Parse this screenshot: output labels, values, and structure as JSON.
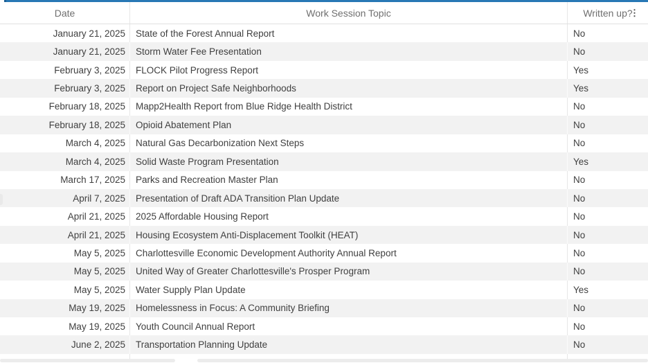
{
  "colors": {
    "accent": "#2878b5",
    "row_stripe": "#f2f2f2",
    "header_text": "#6f6f6f",
    "body_text": "#3f3f3f"
  },
  "table": {
    "columns": [
      {
        "label": "Date"
      },
      {
        "label": "Work Session Topic"
      },
      {
        "label": "Written up?"
      }
    ],
    "column_menu_icon": "⋮",
    "rows": [
      {
        "date": "January 21, 2025",
        "topic": "State of the Forest Annual Report",
        "written": "No"
      },
      {
        "date": "January 21, 2025",
        "topic": "Storm Water Fee Presentation",
        "written": "No"
      },
      {
        "date": "February 3, 2025",
        "topic": "FLOCK Pilot Progress Report",
        "written": "Yes"
      },
      {
        "date": "February 3, 2025",
        "topic": "Report on Project Safe Neighborhoods",
        "written": "Yes"
      },
      {
        "date": "February 18, 2025",
        "topic": "Mapp2Health Report from Blue Ridge Health District",
        "written": "No"
      },
      {
        "date": "February 18, 2025",
        "topic": "Opioid Abatement Plan",
        "written": "No"
      },
      {
        "date": "March 4, 2025",
        "topic": "Natural Gas Decarbonization Next Steps",
        "written": "No"
      },
      {
        "date": "March 4, 2025",
        "topic": "Solid Waste Program Presentation",
        "written": "Yes"
      },
      {
        "date": "March 17, 2025",
        "topic": "Parks and Recreation Master Plan",
        "written": "No"
      },
      {
        "date": "April 7, 2025",
        "topic": "Presentation of Draft ADA Transition Plan Update",
        "written": "No"
      },
      {
        "date": "April 21, 2025",
        "topic": "2025 Affordable Housing Report",
        "written": "No"
      },
      {
        "date": "April 21, 2025",
        "topic": "Housing Ecosystem Anti-Displacement Toolkit (HEAT)",
        "written": "No"
      },
      {
        "date": "May 5, 2025",
        "topic": "Charlottesville Economic Development Authority Annual Report",
        "written": "No"
      },
      {
        "date": "May 5, 2025",
        "topic": "United Way of Greater Charlottesville's Prosper Program",
        "written": "No"
      },
      {
        "date": "May 5, 2025",
        "topic": "Water Supply Plan Update",
        "written": "Yes"
      },
      {
        "date": "May 19, 2025",
        "topic": "Homelessness in Focus: A Community Briefing",
        "written": "No"
      },
      {
        "date": "May 19, 2025",
        "topic": "Youth Council Annual Report",
        "written": "No"
      },
      {
        "date": "June 2, 2025",
        "topic": "Transportation Planning Update",
        "written": "No"
      }
    ]
  }
}
